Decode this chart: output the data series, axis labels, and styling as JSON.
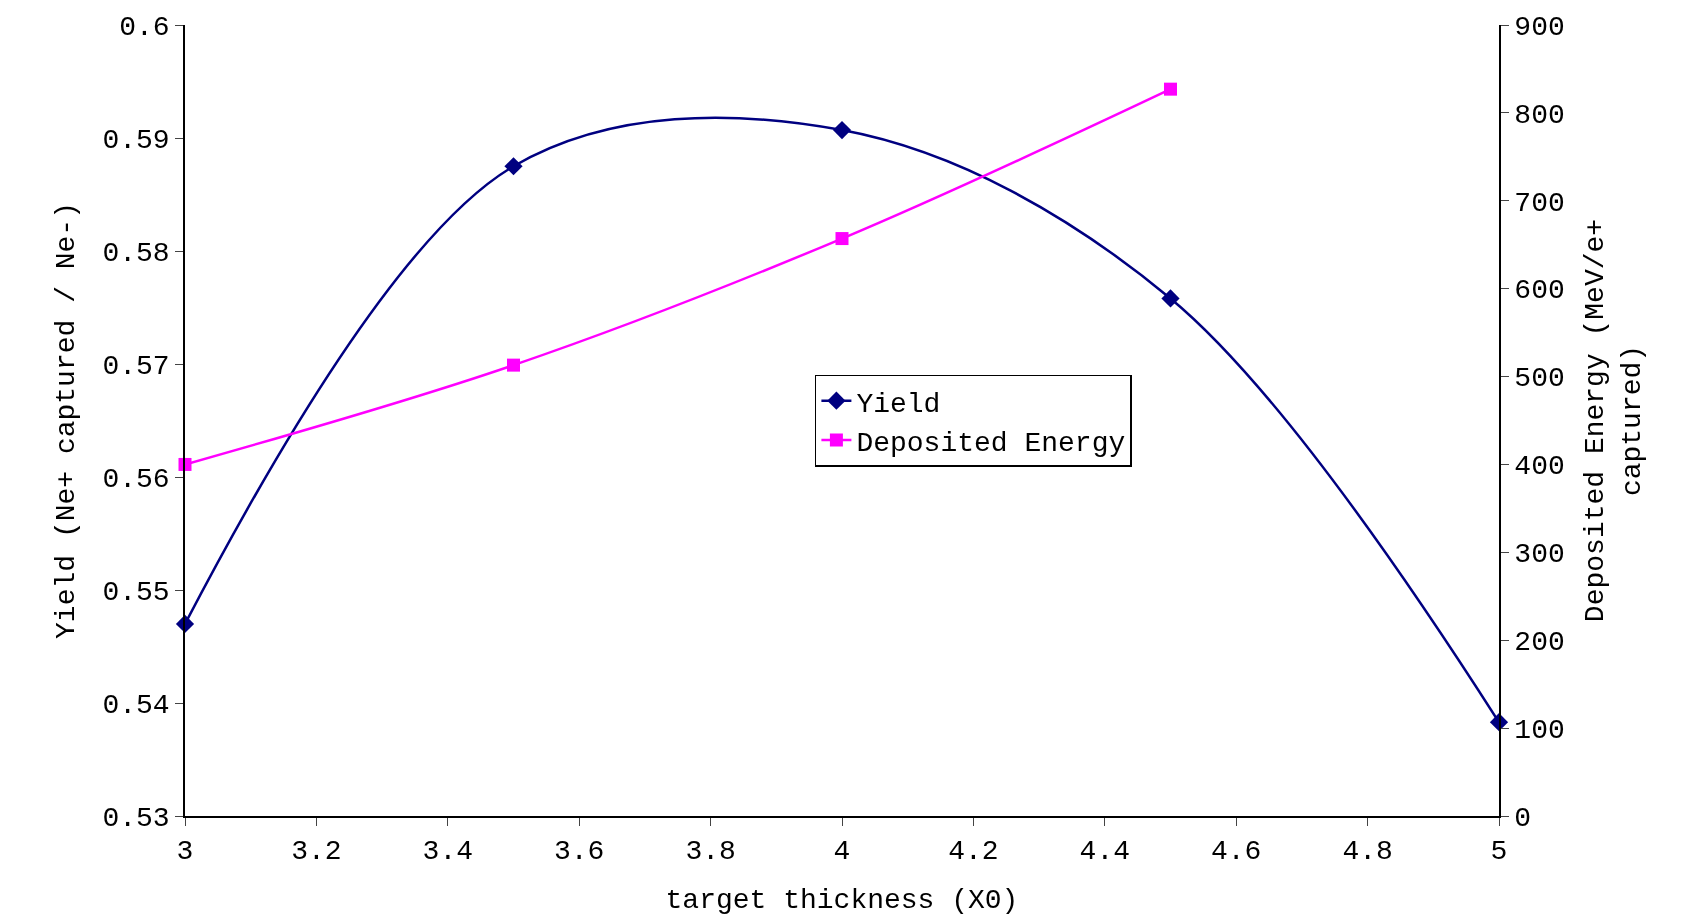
{
  "chart_data": {
    "type": "line",
    "xlabel": "target thickness (X0)",
    "ylabel": "Yield (Ne+ captured / Ne-)",
    "y2label": "Deposited Energy (MeV/e+\ncaptured)",
    "x": [
      3,
      3.5,
      4,
      4.5,
      5
    ],
    "series": [
      {
        "name": "Yield",
        "color": "#000080",
        "marker": "diamond",
        "values": [
          0.547,
          0.5875,
          0.5907,
          0.5758,
          0.5383
        ]
      },
      {
        "name": "Deposited Energy",
        "color": "#ff00ff",
        "marker": "square",
        "axis": "y2",
        "x": [
          3,
          3.5,
          4,
          4.5
        ],
        "values": [
          400,
          513,
          657,
          827
        ]
      }
    ],
    "xlim": [
      3,
      5
    ],
    "xticks": [
      3,
      3.2,
      3.4,
      3.6,
      3.8,
      4,
      4.2,
      4.4,
      4.6,
      4.8,
      5
    ],
    "ylim": [
      0.53,
      0.6
    ],
    "yticks": [
      0.53,
      0.54,
      0.55,
      0.56,
      0.57,
      0.58,
      0.59,
      0.6
    ],
    "y2lim": [
      0,
      900
    ],
    "y2ticks": [
      0,
      100,
      200,
      300,
      400,
      500,
      600,
      700,
      800,
      900
    ],
    "grid": false,
    "legend": "center",
    "line_style": "solid"
  }
}
